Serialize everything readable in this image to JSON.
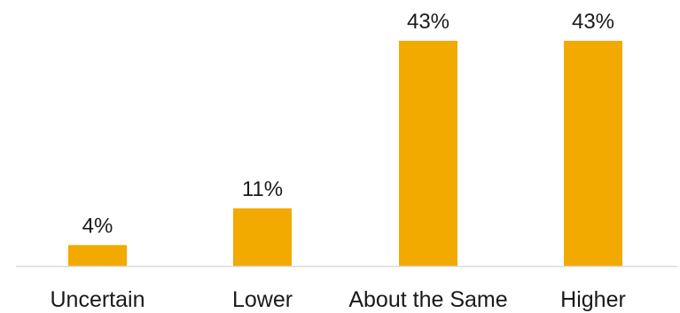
{
  "chart_data": {
    "type": "bar",
    "categories": [
      "Uncertain",
      "Lower",
      "About the Same",
      "Higher"
    ],
    "values": [
      4,
      11,
      43,
      43
    ],
    "value_labels": [
      "4%",
      "11%",
      "43%",
      "43%"
    ],
    "title": "",
    "xlabel": "",
    "ylabel": "",
    "ylim": [
      0,
      43
    ],
    "grid": false,
    "bar_color": "#F2A900",
    "axis_color": "#d9d9d9"
  }
}
